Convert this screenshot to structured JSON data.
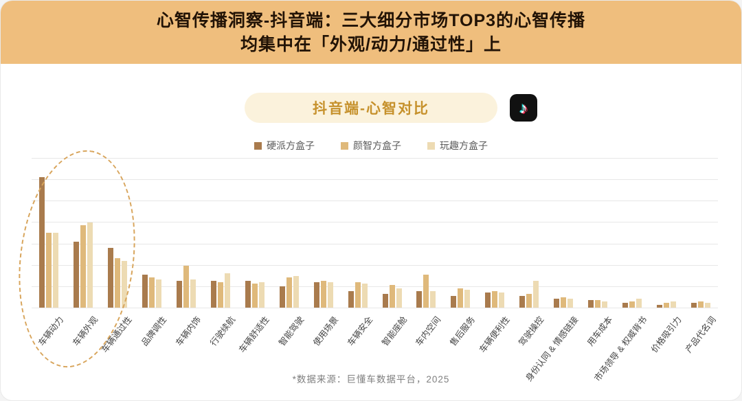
{
  "header": {
    "title_line1": "心智传播洞察-抖音端：三大细分市场TOP3的心智传播",
    "title_line2": "均集中在「外观/动力/通过性」上"
  },
  "badge": {
    "label": "抖音端-心智对比",
    "icon": "tiktok-icon",
    "icon_glyph": "♪"
  },
  "footer": {
    "source": "*数据来源：巨懂车数据平台，2025"
  },
  "colors": {
    "header_bg": "#EFBE7D",
    "badge_bg": "#FBF2DC",
    "badge_text": "#C6912C",
    "ellipse": "#D8A55C",
    "grid": "#E7E7E7",
    "tiktok_bg": "#111111"
  },
  "chart_data": {
    "type": "bar",
    "title": "抖音端-心智对比",
    "categories": [
      "车辆动力",
      "车辆外观",
      "车辆通过性",
      "品牌调性",
      "车辆内饰",
      "行驶续航",
      "车辆舒适性",
      "智能驾驶",
      "使用场景",
      "车辆安全",
      "智能座舱",
      "车内空间",
      "售后服务",
      "车辆便利性",
      "驾驶操控",
      "身份认同 & 情感链接",
      "用车成本",
      "市场领导 & 权威背书",
      "价格吸引力",
      "产品代名词"
    ],
    "series": [
      {
        "name": "硬派方盒子",
        "color": "#A97B4D",
        "values": [
          87,
          44,
          40,
          22,
          18,
          18,
          18,
          14,
          17,
          11,
          9,
          11,
          8,
          10,
          8,
          6,
          5,
          3,
          2,
          3
        ]
      },
      {
        "name": "颜智方盒子",
        "color": "#DFB97B",
        "values": [
          50,
          55,
          33,
          20,
          28,
          17,
          16,
          20,
          18,
          17,
          15,
          22,
          13,
          11,
          9,
          7,
          5,
          4,
          3,
          4
        ]
      },
      {
        "name": "玩趣方盒子",
        "color": "#EDDBB3",
        "values": [
          50,
          57,
          31,
          19,
          19,
          23,
          17,
          21,
          17,
          16,
          13,
          11,
          12,
          10,
          18,
          6,
          4,
          6,
          4,
          3
        ]
      }
    ],
    "ylim": [
      0,
      100
    ],
    "grid": true,
    "legend_position": "top",
    "annotation": "虚线椭圆标注前三项：车辆动力/车辆外观/车辆通过性"
  }
}
